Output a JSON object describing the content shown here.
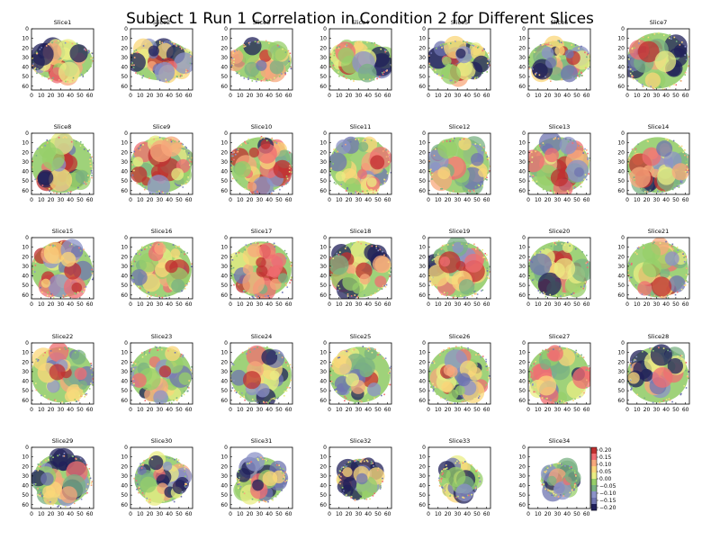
{
  "figure": {
    "title": "Subject 1 Run 1 Correlation in Condition 2 for Different Slices"
  },
  "chart_data": {
    "type": "heatmap",
    "title": "Subject 1 Run 1 Correlation in Condition 2 for Different Slices",
    "panel_titles": [
      "Slice1",
      "Slice2",
      "Slice3",
      "Slice4",
      "Slice5",
      "Slice6",
      "Slice7",
      "Slice8",
      "Slice9",
      "Slice10",
      "Slice11",
      "Slice12",
      "Slice13",
      "Slice14",
      "Slice15",
      "Slice16",
      "Slice17",
      "Slice18",
      "Slice19",
      "Slice20",
      "Slice21",
      "Slice22",
      "Slice23",
      "Slice24",
      "Slice25",
      "Slice26",
      "Slice27",
      "Slice28",
      "Slice29",
      "Slice30",
      "Slice31",
      "Slice32",
      "Slice33",
      "Slice34"
    ],
    "xticks": [
      "0",
      "10",
      "20",
      "30",
      "40",
      "50",
      "60"
    ],
    "yticks": [
      "0",
      "10",
      "20",
      "30",
      "40",
      "50",
      "60"
    ],
    "xlim": [
      0,
      64
    ],
    "ylim": [
      64,
      0
    ],
    "colorbar": {
      "ticks": [
        "0.20",
        "0.15",
        "0.10",
        "0.05",
        "0.00",
        "−0.05",
        "−0.10",
        "−0.15",
        "−0.20"
      ],
      "range": [
        -0.2,
        0.2
      ],
      "colors": [
        "#20205a",
        "#6f74b0",
        "#8c93c8",
        "#79b183",
        "#97cf6a",
        "#e9ee84",
        "#fbd77a",
        "#f8a87c",
        "#f06d72",
        "#c03030"
      ]
    },
    "grid": false,
    "layout": "5 rows x 7 columns"
  }
}
